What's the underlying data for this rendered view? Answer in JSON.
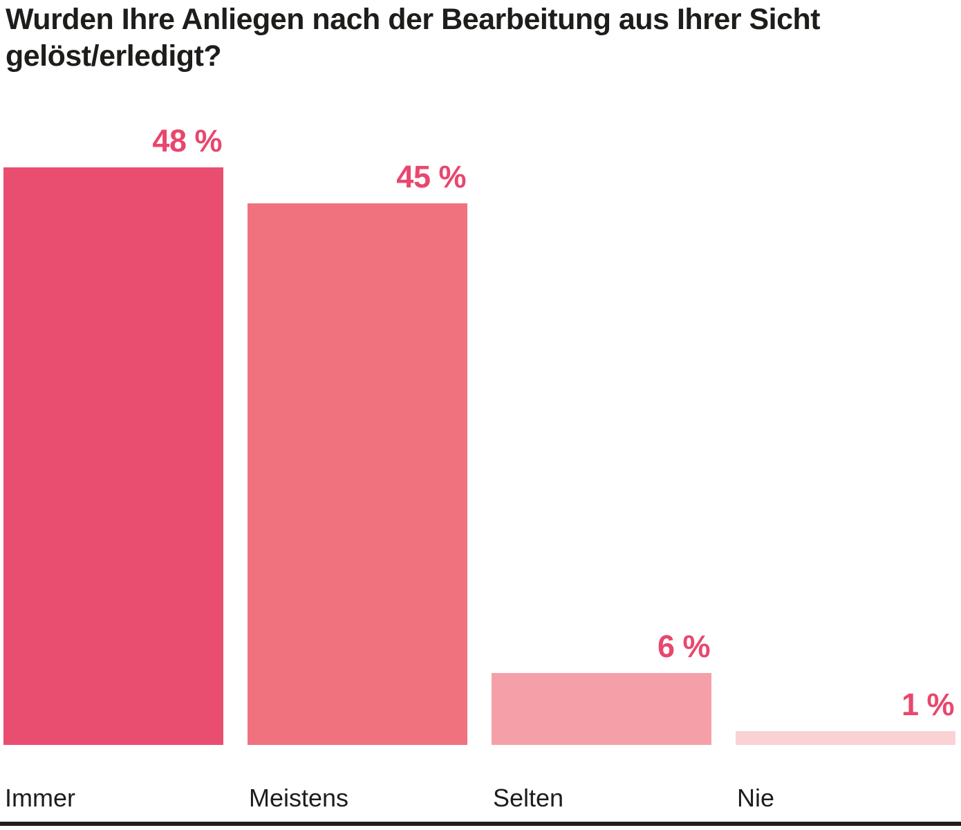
{
  "title": "Wurden Ihre Anliegen nach der Bearbeitung aus Ihrer Sicht\ngelöst/erledigt?",
  "chart_data": {
    "type": "bar",
    "title": "Wurden Ihre Anliegen nach der Bearbeitung aus Ihrer Sicht gelöst/erledigt?",
    "categories": [
      "Immer",
      "Meistens",
      "Selten",
      "Nie"
    ],
    "values": [
      48,
      45,
      6,
      1
    ],
    "value_labels": [
      "48 %",
      "45 %",
      "6 %",
      "1 %"
    ],
    "unit": "%",
    "ylim": [
      0,
      50
    ],
    "grid": false,
    "legend": false,
    "orientation": "vertical",
    "bar_colors": [
      "#e94d6f",
      "#f0727f",
      "#f5a0a8",
      "#fad2d4"
    ],
    "value_label_color": "#e8476e",
    "text_color": "#1d1d1b",
    "baseline_color": "#1d1d1b"
  }
}
